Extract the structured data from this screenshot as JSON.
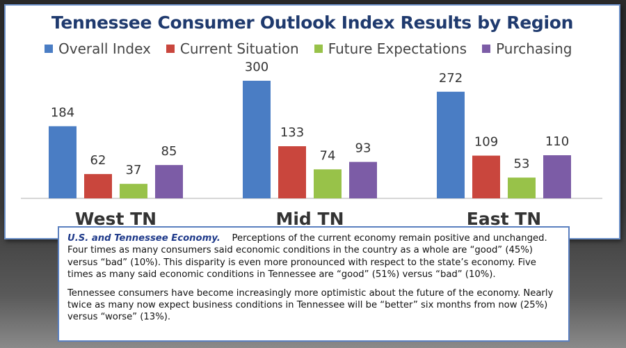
{
  "chart_data": {
    "type": "bar",
    "title": "Tennessee Consumer Outlook Index Results by Region",
    "categories": [
      "West TN",
      "Mid TN",
      "East TN"
    ],
    "series": [
      {
        "name": "Overall Index",
        "color": "#4a7dc4",
        "values": [
          184,
          300,
          272
        ]
      },
      {
        "name": "Current Situation",
        "color": "#c9463d",
        "values": [
          62,
          133,
          109
        ]
      },
      {
        "name": "Future Expectations",
        "color": "#98c249",
        "values": [
          37,
          74,
          53
        ]
      },
      {
        "name": "Purchasing",
        "color": "#7c5ca6",
        "values": [
          85,
          93,
          110
        ]
      }
    ],
    "ylim": [
      0,
      300
    ],
    "grid": false,
    "legend_position": "top"
  },
  "textbox": {
    "heading": "U.S. and Tennessee Economy.",
    "p1": "Perceptions of the current economy remain positive and unchanged.  Four times as many consumers said economic conditions in the country as a whole are “good” (45%) versus “bad” (10%).  This disparity is even more pronounced with respect to the state’s economy.  Five times as many said economic conditions in Tennessee are “good” (51%) versus “bad” (10%).",
    "p2": "Tennessee consumers have become increasingly more optimistic about the future of the economy.  Nearly twice as many now expect business conditions in Tennessee will be “better” six months from now (25%) versus “worse” (13%)."
  }
}
